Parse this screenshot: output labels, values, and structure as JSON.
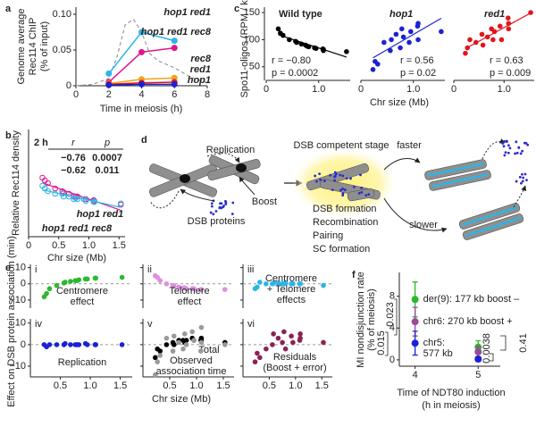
{
  "chart_data": [
    {
      "panel": "a",
      "type": "line",
      "ylabel": [
        "Genome average",
        "Rec114 ChIP",
        "(% of input)"
      ],
      "xlabel": "Time in meiosis (h)",
      "xlim": [
        0,
        8
      ],
      "xticks": [
        0,
        2,
        4,
        6,
        8
      ],
      "ylim": [
        0,
        0.11
      ],
      "yticks": [
        0,
        0.05,
        {
          "value": 0.1,
          "label": "0.10"
        }
      ],
      "series": [
        {
          "color": "#9a9a9a",
          "dash": true,
          "x": [
            0,
            1,
            2,
            2.5,
            3,
            3.5,
            4,
            4.5,
            5,
            6,
            7,
            8
          ],
          "values": [
            0,
            0.002,
            0.01,
            0.04,
            0.085,
            0.093,
            0.075,
            0.045,
            0.035,
            0.025,
            0.012,
            0.004
          ]
        },
        {
          "name": "hop1 red1",
          "color": "#e0168c",
          "x": [
            2,
            4,
            6
          ],
          "values": [
            0.005,
            0.047,
            0.053
          ]
        },
        {
          "name": "hop1 red1 rec8",
          "color": "#29b6e8",
          "x": [
            2,
            4,
            6
          ],
          "values": [
            0.017,
            0.075,
            0.063
          ]
        },
        {
          "name": "rec8",
          "color": "#f2a31b",
          "x": [
            2,
            4,
            6
          ],
          "values": [
            0.003,
            0.009,
            0.011
          ]
        },
        {
          "name": "red1",
          "color": "#e3151b",
          "x": [
            2,
            4,
            6
          ],
          "values": [
            0.002,
            0.004,
            0.005
          ]
        },
        {
          "name": "hop1",
          "color": "#1b22d4",
          "x": [
            2,
            4,
            6
          ],
          "values": [
            0.001,
            0.002,
            0.002
          ]
        }
      ]
    },
    {
      "panel": "b",
      "type": "scatter",
      "title": "2 h",
      "stat_headers": [
        "r",
        "p"
      ],
      "xlabel": "Chr size (Mb)",
      "ylabel": "Relative Rec114 density",
      "xlim": [
        0,
        1.6
      ],
      "xticks": [
        0,
        0.5,
        {
          "value": 1,
          "label": "1.0"
        },
        1.5
      ],
      "ylim": [
        0.3,
        2.3
      ],
      "x": [
        0.23,
        0.27,
        0.32,
        0.44,
        0.56,
        0.58,
        0.67,
        0.75,
        0.78,
        0.81,
        0.92,
        0.95,
        1.08,
        1.09,
        1.09,
        1.53
      ],
      "series": [
        {
          "name": "hop1 red1",
          "color": "#e0168c",
          "r": {
            "value": -0.76,
            "label": "−0.76"
          },
          "p": 0.0007,
          "values": [
            1.4,
            1.35,
            1.3,
            1.2,
            1.15,
            1.12,
            1.1,
            1.05,
            1.05,
            1.05,
            1.0,
            1.0,
            0.98,
            0.97,
            0.95,
            0.9
          ]
        },
        {
          "name": "hop1 red1 rec8",
          "color": "#29b6e8",
          "r": {
            "value": -0.62,
            "label": "−0.62"
          },
          "p": 0.011,
          "values": [
            1.25,
            1.2,
            1.15,
            1.1,
            1.1,
            1.05,
            1.05,
            1.0,
            1.02,
            1.0,
            1.0,
            0.97,
            0.95,
            0.96,
            0.95,
            0.92
          ]
        }
      ]
    },
    {
      "panel": "c",
      "type": "scatter",
      "ylabel": "Spo11-oligos (RPM / kb)",
      "xlabel": "Chr size (Mb)",
      "ylim": [
        25,
        160
      ],
      "yticks": [
        50,
        100,
        150
      ],
      "xlim": [
        0,
        1.6
      ],
      "xticks": [
        0,
        {
          "value": 1,
          "label": "1.0"
        }
      ],
      "x": [
        0.23,
        0.27,
        0.32,
        0.44,
        0.56,
        0.58,
        0.67,
        0.75,
        0.78,
        0.81,
        0.92,
        0.95,
        1.08,
        1.09,
        1.09,
        1.53
      ],
      "panels": [
        {
          "title": "Wild type",
          "color": "#000000",
          "r": "r = −0.80",
          "p": "p = 0.0002",
          "values": [
            120,
            112,
            108,
            100,
            97,
            95,
            92,
            90,
            88,
            87,
            85,
            84,
            83,
            82,
            80,
            78
          ]
        },
        {
          "title": "hop1",
          "color": "#1b22d4",
          "r": "r = 0.56",
          "p": "p = 0.02",
          "values": [
            45,
            60,
            55,
            95,
            80,
            100,
            110,
            85,
            120,
            105,
            95,
            115,
            125,
            100,
            130,
            115
          ]
        },
        {
          "title": "red1",
          "color": "#e3151b",
          "r": "r = 0.63",
          "p": "p = 0.009",
          "values": [
            75,
            85,
            100,
            95,
            110,
            90,
            105,
            120,
            100,
            115,
            125,
            100,
            140,
            130,
            120,
            150
          ]
        }
      ]
    },
    {
      "panel": "e",
      "type": "scatter",
      "ylabel": "Effect on DSB protein association (min)",
      "xlabel": "Chr size (Mb)",
      "ylim": [
        -15,
        12
      ],
      "yticks": [
        {
          "value": -10,
          "label": "−10"
        },
        0,
        10
      ],
      "xlim": [
        0,
        1.7
      ],
      "xticks": [
        0.5,
        {
          "value": 1,
          "label": "1.0"
        },
        1.5
      ],
      "x": [
        0.23,
        0.27,
        0.32,
        0.44,
        0.56,
        0.58,
        0.67,
        0.75,
        0.78,
        0.81,
        0.92,
        0.95,
        1.08,
        1.09,
        1.09,
        1.53
      ],
      "panels": [
        {
          "label": "i",
          "series": [
            {
              "label": [
                "Centromere",
                "effect"
              ],
              "color": "#2db82d",
              "values": [
                -8,
                -6,
                -3,
                -1,
                0.5,
                1,
                1.5,
                2,
                2,
                2.5,
                3,
                3,
                3.5,
                3.5,
                3.5,
                4
              ]
            }
          ]
        },
        {
          "label": "ii",
          "series": [
            {
              "label": [
                "Telomere",
                "effect"
              ],
              "color": "#e08ee0",
              "values": [
                5,
                4,
                2,
                0,
                -1,
                -1.5,
                -2,
                -2.5,
                -2.5,
                -3,
                -3,
                -3,
                -3.5,
                -3.5,
                -3.5,
                -3.5
              ]
            }
          ]
        },
        {
          "label": "iii",
          "series": [
            {
              "label": [
                "Centromere",
                "+ Telomere",
                "effects"
              ],
              "color": "#29b6e8",
              "values": [
                -3,
                -2,
                1,
                0,
                0,
                0.5,
                0.5,
                0,
                0,
                0.5,
                0,
                0,
                0,
                0,
                0,
                -1
              ]
            }
          ]
        },
        {
          "label": "iv",
          "series": [
            {
              "label": [
                "Replication"
              ],
              "color": "#1b22d4",
              "values": [
                0,
                -1,
                0,
                0,
                0,
                0.5,
                0,
                0,
                0,
                0,
                0.5,
                0,
                0,
                0,
                0,
                0
              ]
            }
          ]
        },
        {
          "label": "v",
          "series": [
            {
              "label": [
                "Total"
              ],
              "color": "#000000",
              "values": [
                -6,
                -2,
                -3,
                0,
                1,
                0,
                2,
                2,
                1,
                2,
                3,
                2,
                2,
                2,
                3,
                1
              ]
            },
            {
              "label": [
                "Observed",
                "association time"
              ],
              "color": "#9a9a9a",
              "values": [
                -14,
                -8,
                -5,
                3,
                -3,
                4,
                1,
                -2,
                5,
                0,
                6,
                2,
                -3,
                8,
                1,
                0
              ]
            }
          ]
        },
        {
          "label": "vi",
          "series": [
            {
              "label": [
                "Residuals",
                "(Boost + error)"
              ],
              "color": "#8b2252",
              "values": [
                -8,
                -4,
                -6,
                -2,
                0,
                5,
                3,
                1,
                6,
                -2,
                4,
                1,
                2,
                5,
                3,
                1
              ]
            }
          ]
        }
      ]
    },
    {
      "panel": "f",
      "type": "errorbar",
      "ylabel": [
        "MI nondisjunction rate",
        "(% of meiosis)"
      ],
      "xlabel": [
        "Time of NDT80 induction",
        "(h in meiosis)"
      ],
      "xlim": [
        3.75,
        5.35
      ],
      "xticks": [
        4,
        5
      ],
      "ylim": [
        -0.8,
        11
      ],
      "yticks": [
        0,
        4,
        8
      ],
      "series": [
        {
          "label": [
            "der(9): 177 kb boost –"
          ],
          "color": "#2db82d",
          "x": [
            4,
            5
          ],
          "values": [
            7.6,
            1.6
          ],
          "errors": [
            2.2,
            0.8
          ]
        },
        {
          "label": [
            "chr6: 270 kb boost +"
          ],
          "color": "#9b4a9b",
          "x": [
            4,
            5
          ],
          "values": [
            4.8,
            1.0
          ],
          "errors": [
            1.8,
            0.7
          ]
        },
        {
          "label": [
            "chr5:",
            "577 kb"
          ],
          "color": "#1b22d4",
          "x": [
            4,
            5
          ],
          "values": [
            2.1,
            0.1
          ],
          "errors": [
            1.5,
            0.3
          ]
        }
      ],
      "pvalues": [
        0.023,
        0.015,
        0.0038,
        0.41
      ]
    }
  ],
  "diagram": {
    "panel": "d",
    "replication": "Replication",
    "dsb_proteins": "DSB proteins",
    "boost": "Boost",
    "competent": "DSB competent stage",
    "faster": "faster",
    "slower": "slower",
    "steps": [
      "DSB formation",
      "Recombination",
      "Pairing",
      "SC formation"
    ]
  }
}
